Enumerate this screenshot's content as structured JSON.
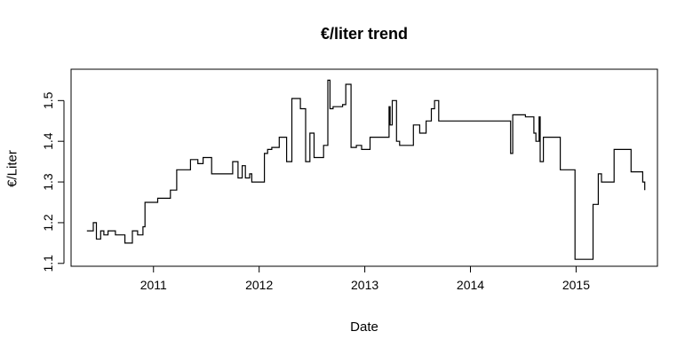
{
  "chart_data": {
    "type": "line",
    "step": true,
    "title": "€/liter trend",
    "xlabel": "Date",
    "ylabel": "€/Liter",
    "xlim": [
      2010.22,
      2015.77
    ],
    "ylim": [
      1.093,
      1.577
    ],
    "x_ticks": [
      2011,
      2012,
      2013,
      2014,
      2015
    ],
    "x_tick_labels": [
      "2011",
      "2012",
      "2013",
      "2014",
      "2015"
    ],
    "y_ticks": [
      1.1,
      1.2,
      1.3,
      1.4,
      1.5
    ],
    "y_tick_labels": [
      "1.1",
      "1.2",
      "1.3",
      "1.4",
      "1.5"
    ],
    "grid": false,
    "legend": "none",
    "line_color": "#000000",
    "series": [
      {
        "x": [
          2010.37,
          2010.43,
          2010.46,
          2010.5,
          2010.53,
          2010.57,
          2010.64,
          2010.73,
          2010.8,
          2010.85,
          2010.9,
          2010.92,
          2010.96,
          2011.04,
          2011.16,
          2011.22,
          2011.35,
          2011.42,
          2011.47,
          2011.55,
          2011.75,
          2011.8,
          2011.84,
          2011.87,
          2011.91,
          2011.93,
          2012.05,
          2012.08,
          2012.12,
          2012.19,
          2012.26,
          2012.31,
          2012.39,
          2012.44,
          2012.48,
          2012.52,
          2012.61,
          2012.65,
          2012.67,
          2012.7,
          2012.79,
          2012.82,
          2012.87,
          2012.92,
          2012.97,
          2013.05,
          2013.15,
          2013.23,
          2013.24,
          2013.26,
          2013.3,
          2013.33,
          2013.43,
          2013.46,
          2013.52,
          2013.58,
          2013.63,
          2013.66,
          2013.7,
          2014.23,
          2014.38,
          2014.4,
          2014.52,
          2014.59,
          2014.6,
          2014.62,
          2014.65,
          2014.66,
          2014.69,
          2014.85,
          2014.99,
          2015.16,
          2015.21,
          2015.24,
          2015.36,
          2015.52,
          2015.63,
          2015.65
        ],
        "y": [
          1.18,
          1.2,
          1.16,
          1.18,
          1.17,
          1.18,
          1.17,
          1.15,
          1.18,
          1.17,
          1.19,
          1.25,
          1.25,
          1.26,
          1.28,
          1.33,
          1.355,
          1.345,
          1.36,
          1.32,
          1.35,
          1.31,
          1.34,
          1.31,
          1.32,
          1.3,
          1.37,
          1.38,
          1.385,
          1.41,
          1.35,
          1.505,
          1.48,
          1.35,
          1.42,
          1.36,
          1.39,
          1.55,
          1.48,
          1.485,
          1.49,
          1.54,
          1.385,
          1.39,
          1.38,
          1.41,
          1.41,
          1.485,
          1.44,
          1.5,
          1.4,
          1.39,
          1.39,
          1.44,
          1.42,
          1.45,
          1.48,
          1.5,
          1.45,
          1.45,
          1.37,
          1.465,
          1.46,
          1.46,
          1.42,
          1.4,
          1.46,
          1.35,
          1.41,
          1.33,
          1.11,
          1.245,
          1.32,
          1.3,
          1.38,
          1.325,
          1.3,
          1.28
        ]
      }
    ]
  }
}
